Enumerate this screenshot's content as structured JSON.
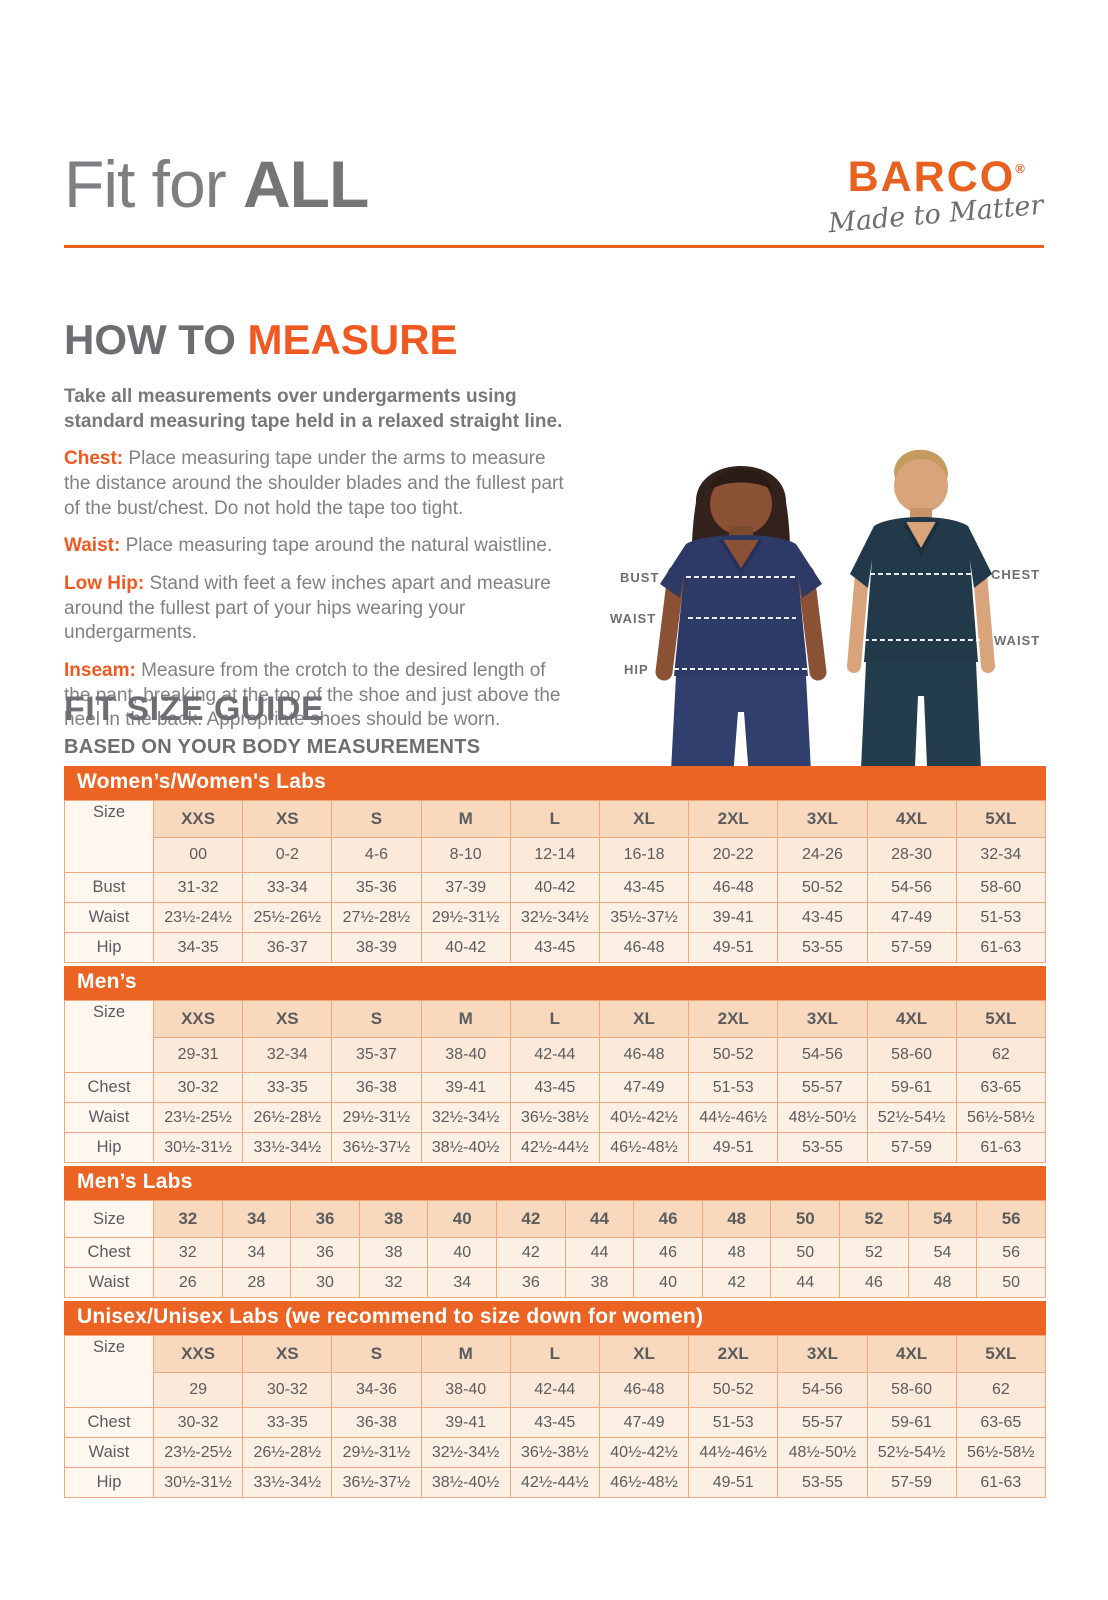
{
  "colors": {
    "accent_orange": "#ec6424",
    "heading_gray": "#6d6e71",
    "table_text": "#5b5c5e",
    "female_scrub_navy": "#2e3a66",
    "male_scrub_teal": "#22394a"
  },
  "header": {
    "title_regular": "Fit for ",
    "title_bold": "ALL",
    "brand": "BARCO",
    "brand_reg": "®",
    "brand_tagline": "Made to Matter"
  },
  "how_to_measure": {
    "title_gray": "HOW TO ",
    "title_orange": "MEASURE",
    "intro": "Take all measurements over undergarments using standard measuring tape held in a relaxed straight line.",
    "items": [
      {
        "label": "Chest:",
        "text": "Place measuring tape under the arms to measure the distance around the shoulder blades and the fullest part of the bust/chest. Do not hold the tape too tight."
      },
      {
        "label": "Waist:",
        "text": "Place measuring tape around the natural waistline."
      },
      {
        "label": "Low Hip:",
        "text": "Stand with feet a few inches apart and measure around the fullest part of your hips wearing your undergarments."
      },
      {
        "label": "Inseam:",
        "text": "Measure from the crotch to the desired length of the pant, breaking at the top of the shoe and just above the heel in the back. Appropriate shoes should be worn."
      }
    ]
  },
  "models": {
    "female": {
      "labels": [
        "BUST",
        "WAIST",
        "HIP"
      ]
    },
    "male": {
      "labels": [
        "CHEST",
        "WAIST"
      ]
    }
  },
  "size_guide": {
    "title": "FIT SIZE GUIDE",
    "subtitle": "BASED ON YOUR BODY MEASUREMENTS",
    "tables": [
      {
        "id": "womens",
        "title": "Women’s/Women's Labs",
        "size_row_label": "Size",
        "size_labels": [
          "XXS",
          "XS",
          "S",
          "M",
          "L",
          "XL",
          "2XL",
          "3XL",
          "4XL",
          "5XL"
        ],
        "size_numbers": [
          "00",
          "0-2",
          "4-6",
          "8-10",
          "12-14",
          "16-18",
          "20-22",
          "24-26",
          "28-30",
          "32-34"
        ],
        "rows": [
          {
            "label": "Bust",
            "values": [
              "31-32",
              "33-34",
              "35-36",
              "37-39",
              "40-42",
              "43-45",
              "46-48",
              "50-52",
              "54-56",
              "58-60"
            ]
          },
          {
            "label": "Waist",
            "values": [
              "23½-24½",
              "25½-26½",
              "27½-28½",
              "29½-31½",
              "32½-34½",
              "35½-37½",
              "39-41",
              "43-45",
              "47-49",
              "51-53"
            ]
          },
          {
            "label": "Hip",
            "values": [
              "34-35",
              "36-37",
              "38-39",
              "40-42",
              "43-45",
              "46-48",
              "49-51",
              "53-55",
              "57-59",
              "61-63"
            ]
          }
        ]
      },
      {
        "id": "mens",
        "title": "Men’s",
        "size_row_label": "Size",
        "size_labels": [
          "XXS",
          "XS",
          "S",
          "M",
          "L",
          "XL",
          "2XL",
          "3XL",
          "4XL",
          "5XL"
        ],
        "size_numbers": [
          "29-31",
          "32-34",
          "35-37",
          "38-40",
          "42-44",
          "46-48",
          "50-52",
          "54-56",
          "58-60",
          "62"
        ],
        "rows": [
          {
            "label": "Chest",
            "values": [
              "30-32",
              "33-35",
              "36-38",
              "39-41",
              "43-45",
              "47-49",
              "51-53",
              "55-57",
              "59-61",
              "63-65"
            ]
          },
          {
            "label": "Waist",
            "values": [
              "23½-25½",
              "26½-28½",
              "29½-31½",
              "32½-34½",
              "36½-38½",
              "40½-42½",
              "44½-46½",
              "48½-50½",
              "52½-54½",
              "56½-58½"
            ]
          },
          {
            "label": "Hip",
            "values": [
              "30½-31½",
              "33½-34½",
              "36½-37½",
              "38½-40½",
              "42½-44½",
              "46½-48½",
              "49-51",
              "53-55",
              "57-59",
              "61-63"
            ]
          }
        ]
      },
      {
        "id": "mens-labs",
        "title": "Men’s Labs",
        "size_row_label": "Size",
        "size_labels": [
          "32",
          "34",
          "36",
          "38",
          "40",
          "42",
          "44",
          "46",
          "48",
          "50",
          "52",
          "54",
          "56"
        ],
        "size_numbers": null,
        "rows": [
          {
            "label": "Chest",
            "values": [
              "32",
              "34",
              "36",
              "38",
              "40",
              "42",
              "44",
              "46",
              "48",
              "50",
              "52",
              "54",
              "56"
            ]
          },
          {
            "label": "Waist",
            "values": [
              "26",
              "28",
              "30",
              "32",
              "34",
              "36",
              "38",
              "40",
              "42",
              "44",
              "46",
              "48",
              "50"
            ]
          }
        ]
      },
      {
        "id": "unisex",
        "title": "Unisex/Unisex Labs (we recommend to size down for women)",
        "size_row_label": "Size",
        "size_labels": [
          "XXS",
          "XS",
          "S",
          "M",
          "L",
          "XL",
          "2XL",
          "3XL",
          "4XL",
          "5XL"
        ],
        "size_numbers": [
          "29",
          "30-32",
          "34-36",
          "38-40",
          "42-44",
          "46-48",
          "50-52",
          "54-56",
          "58-60",
          "62"
        ],
        "rows": [
          {
            "label": "Chest",
            "values": [
              "30-32",
              "33-35",
              "36-38",
              "39-41",
              "43-45",
              "47-49",
              "51-53",
              "55-57",
              "59-61",
              "63-65"
            ]
          },
          {
            "label": "Waist",
            "values": [
              "23½-25½",
              "26½-28½",
              "29½-31½",
              "32½-34½",
              "36½-38½",
              "40½-42½",
              "44½-46½",
              "48½-50½",
              "52½-54½",
              "56½-58½"
            ]
          },
          {
            "label": "Hip",
            "values": [
              "30½-31½",
              "33½-34½",
              "36½-37½",
              "38½-40½",
              "42½-44½",
              "46½-48½",
              "49-51",
              "53-55",
              "57-59",
              "61-63"
            ]
          }
        ]
      }
    ]
  }
}
